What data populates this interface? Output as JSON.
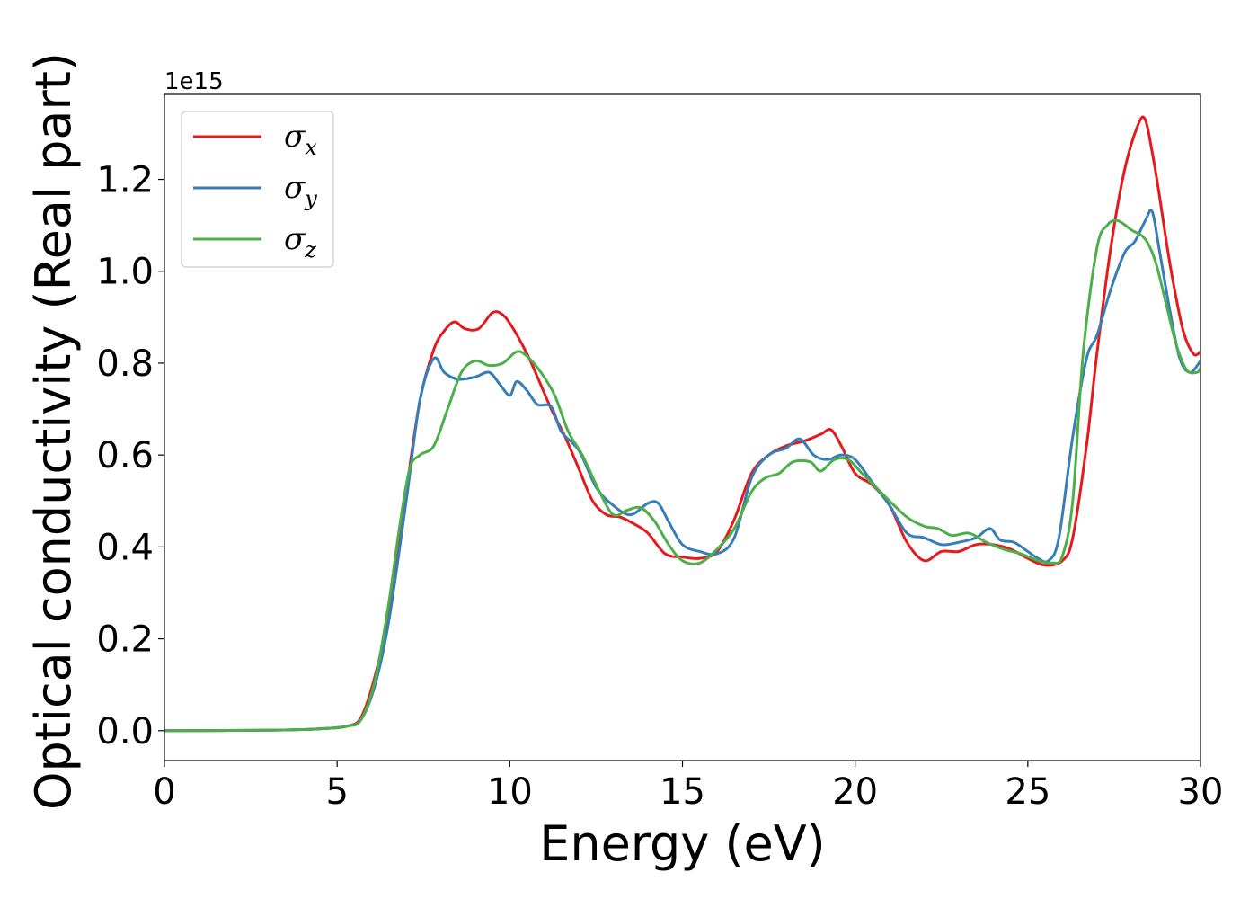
{
  "chart_data": {
    "type": "line",
    "xlabel": "Energy (eV)",
    "ylabel": "Optical conductivity (Real part)",
    "y_offset_text": "1e15",
    "xlim": [
      0,
      30
    ],
    "ylim": [
      -0.065,
      1.385
    ],
    "x_ticks": [
      0,
      5,
      10,
      15,
      20,
      25,
      30
    ],
    "x_tick_labels": [
      "0",
      "5",
      "10",
      "15",
      "20",
      "25",
      "30"
    ],
    "y_ticks": [
      0.0,
      0.2,
      0.4,
      0.6,
      0.8,
      1.0,
      1.2
    ],
    "y_tick_labels": [
      "0.0",
      "0.2",
      "0.4",
      "0.6",
      "0.8",
      "1.0",
      "1.2"
    ],
    "grid": false,
    "legend_position": "top-left",
    "series": [
      {
        "name": "σ",
        "subscript": "x",
        "color": "#e41a1c",
        "x": [
          0,
          3,
          4.5,
          5.3,
          5.7,
          6.1,
          6.5,
          7.0,
          7.4,
          7.8,
          8.1,
          8.4,
          8.7,
          9.1,
          9.5,
          9.8,
          10.1,
          10.5,
          10.8,
          11.2,
          11.6,
          12.0,
          12.4,
          12.8,
          13.2,
          13.6,
          14.0,
          14.5,
          15.0,
          15.5,
          16.0,
          16.5,
          17.0,
          17.5,
          18.0,
          18.5,
          19.0,
          19.3,
          19.6,
          20.0,
          20.5,
          21.0,
          21.5,
          22.0,
          22.5,
          23.0,
          23.5,
          24.0,
          24.5,
          25.0,
          25.5,
          26.0,
          26.3,
          26.7,
          27.0,
          27.4,
          27.8,
          28.2,
          28.4,
          28.6,
          28.8,
          29.0,
          29.2,
          29.5,
          29.8,
          30.0
        ],
        "y": [
          0.0,
          0.001,
          0.004,
          0.01,
          0.03,
          0.12,
          0.26,
          0.52,
          0.72,
          0.83,
          0.87,
          0.89,
          0.875,
          0.875,
          0.91,
          0.905,
          0.875,
          0.82,
          0.77,
          0.7,
          0.64,
          0.57,
          0.5,
          0.47,
          0.465,
          0.45,
          0.43,
          0.385,
          0.378,
          0.375,
          0.39,
          0.46,
          0.56,
          0.6,
          0.62,
          0.63,
          0.645,
          0.655,
          0.62,
          0.56,
          0.535,
          0.49,
          0.41,
          0.37,
          0.39,
          0.39,
          0.405,
          0.405,
          0.395,
          0.375,
          0.36,
          0.37,
          0.42,
          0.62,
          0.82,
          1.05,
          1.22,
          1.32,
          1.33,
          1.26,
          1.17,
          1.07,
          0.98,
          0.87,
          0.82,
          0.825
        ]
      },
      {
        "name": "σ",
        "subscript": "y",
        "color": "#377eb8",
        "x": [
          0,
          3,
          4.5,
          5.3,
          5.7,
          6.1,
          6.5,
          7.0,
          7.4,
          7.8,
          8.1,
          8.5,
          9.0,
          9.4,
          9.7,
          10.0,
          10.2,
          10.5,
          10.8,
          11.2,
          11.5,
          12.0,
          12.5,
          13.0,
          13.5,
          14.0,
          14.3,
          14.6,
          15.0,
          15.5,
          16.0,
          16.5,
          17.0,
          17.5,
          18.0,
          18.4,
          18.8,
          19.2,
          19.6,
          20.0,
          20.5,
          21.0,
          21.5,
          22.0,
          22.5,
          23.0,
          23.5,
          23.9,
          24.2,
          24.6,
          25.0,
          25.3,
          25.6,
          25.9,
          26.3,
          26.7,
          27.0,
          27.4,
          27.8,
          28.1,
          28.4,
          28.6,
          28.8,
          29.1,
          29.4,
          29.7,
          30.0
        ],
        "y": [
          0.0,
          0.001,
          0.004,
          0.01,
          0.025,
          0.1,
          0.24,
          0.5,
          0.72,
          0.81,
          0.78,
          0.765,
          0.77,
          0.78,
          0.755,
          0.73,
          0.76,
          0.74,
          0.71,
          0.705,
          0.65,
          0.61,
          0.53,
          0.49,
          0.47,
          0.495,
          0.495,
          0.455,
          0.405,
          0.39,
          0.385,
          0.42,
          0.55,
          0.6,
          0.615,
          0.635,
          0.6,
          0.59,
          0.6,
          0.59,
          0.54,
          0.49,
          0.43,
          0.42,
          0.405,
          0.41,
          0.42,
          0.44,
          0.415,
          0.41,
          0.39,
          0.375,
          0.37,
          0.42,
          0.64,
          0.81,
          0.86,
          0.96,
          1.04,
          1.065,
          1.11,
          1.13,
          1.05,
          0.92,
          0.81,
          0.78,
          0.805
        ]
      },
      {
        "name": "σ",
        "subscript": "z",
        "color": "#4daf4a",
        "x": [
          0,
          3,
          4.5,
          5.3,
          5.7,
          6.1,
          6.5,
          6.8,
          7.1,
          7.4,
          7.8,
          8.2,
          8.6,
          9.0,
          9.4,
          9.8,
          10.2,
          10.5,
          10.9,
          11.3,
          11.7,
          12.1,
          12.6,
          13.0,
          13.4,
          13.8,
          14.2,
          14.6,
          15.0,
          15.5,
          16.0,
          16.5,
          17.0,
          17.4,
          17.8,
          18.2,
          18.7,
          19.0,
          19.4,
          19.8,
          20.2,
          20.6,
          21.0,
          21.5,
          22.0,
          22.4,
          22.8,
          23.3,
          23.8,
          24.3,
          24.8,
          25.3,
          25.7,
          26.0,
          26.3,
          26.6,
          27.0,
          27.3,
          27.6,
          28.0,
          28.4,
          28.7,
          29.0,
          29.3,
          29.6,
          29.9,
          30.0
        ],
        "y": [
          0.0,
          0.001,
          0.004,
          0.01,
          0.025,
          0.11,
          0.28,
          0.44,
          0.57,
          0.6,
          0.62,
          0.7,
          0.78,
          0.805,
          0.795,
          0.8,
          0.825,
          0.815,
          0.78,
          0.73,
          0.65,
          0.6,
          0.52,
          0.47,
          0.48,
          0.485,
          0.455,
          0.405,
          0.37,
          0.365,
          0.395,
          0.44,
          0.52,
          0.55,
          0.56,
          0.585,
          0.585,
          0.565,
          0.59,
          0.59,
          0.56,
          0.53,
          0.5,
          0.465,
          0.445,
          0.44,
          0.425,
          0.43,
          0.41,
          0.395,
          0.385,
          0.37,
          0.365,
          0.38,
          0.5,
          0.82,
          1.05,
          1.1,
          1.11,
          1.09,
          1.07,
          1.02,
          0.93,
          0.84,
          0.785,
          0.78,
          0.79
        ]
      }
    ]
  }
}
